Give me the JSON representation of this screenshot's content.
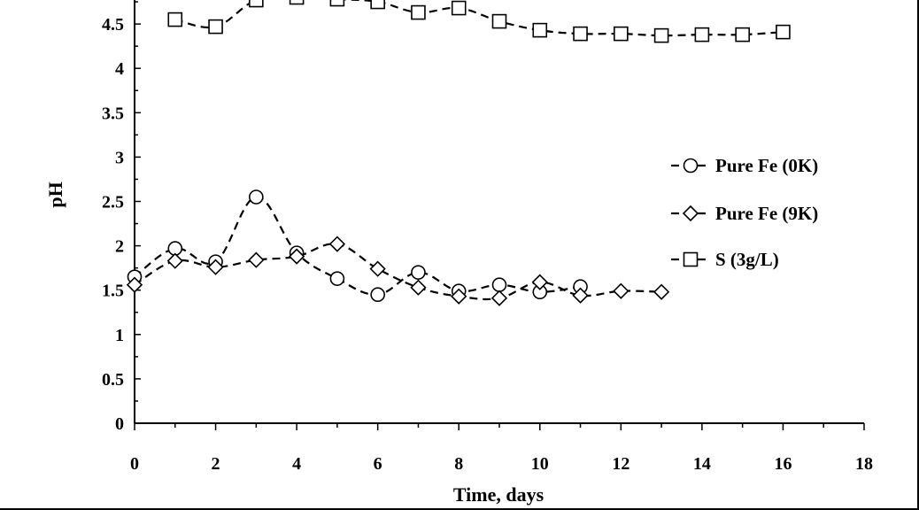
{
  "chart_data": {
    "type": "line",
    "title": "",
    "xlabel": "Time, days",
    "ylabel": "pH",
    "xlim": [
      0,
      18
    ],
    "ylim": [
      0,
      5
    ],
    "xticks": [
      0,
      2,
      4,
      6,
      8,
      10,
      12,
      14,
      16,
      18
    ],
    "yticks": [
      0,
      0.5,
      1,
      1.5,
      2,
      2.5,
      3,
      3.5,
      4,
      4.5
    ],
    "grid": false,
    "legend_position": "right",
    "series": [
      {
        "name": "Pure Fe (0K)",
        "marker": "circle",
        "line_style": "dashed",
        "x": [
          0,
          1,
          2,
          3,
          4,
          5,
          6,
          7,
          8,
          9,
          10,
          11
        ],
        "y": [
          1.65,
          1.97,
          1.82,
          2.55,
          1.92,
          1.63,
          1.45,
          1.7,
          1.49,
          1.56,
          1.48,
          1.54
        ]
      },
      {
        "name": "Pure Fe (9K)",
        "marker": "diamond",
        "line_style": "dashed",
        "x": [
          0,
          1,
          2,
          3,
          4,
          5,
          6,
          7,
          8,
          9,
          10,
          11,
          12,
          13
        ],
        "y": [
          1.56,
          1.83,
          1.76,
          1.84,
          1.88,
          2.02,
          1.74,
          1.53,
          1.43,
          1.41,
          1.59,
          1.44,
          1.49,
          1.48
        ]
      },
      {
        "name": "S (3g/L)",
        "marker": "square",
        "line_style": "dashed",
        "x": [
          1,
          2,
          3,
          4,
          5,
          6,
          7,
          8,
          9,
          10,
          11,
          12,
          13,
          14,
          15,
          16
        ],
        "y": [
          4.55,
          4.47,
          4.77,
          4.8,
          4.78,
          4.75,
          4.63,
          4.68,
          4.53,
          4.43,
          4.39,
          4.39,
          4.37,
          4.38,
          4.38,
          4.41
        ]
      }
    ]
  }
}
